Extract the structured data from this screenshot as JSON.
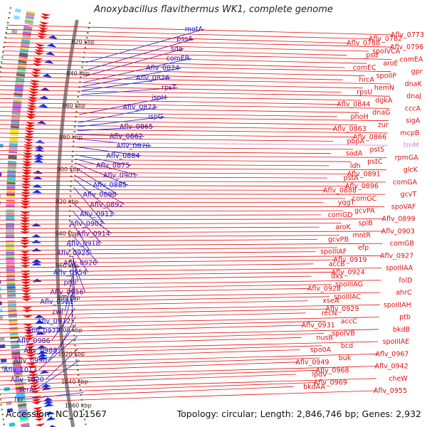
{
  "title": "Anoxybacillus flavithermus WK1, complete genome",
  "footer": {
    "accession": "Accession: NC_011567",
    "summary": "Topology: circular; Length: 2,846,746 bp; Genes: 2,932"
  },
  "colors": {
    "left_labels": "#1010d0",
    "right_labels": "#e01010",
    "trna_label": "#d080d0",
    "backbone": "#888888",
    "tick_dots": "#2a7a2a",
    "forward_arrows": "#e81010",
    "reverse_arrows": "#1030e0"
  },
  "ticks": [
    {
      "label": "820 kbp",
      "t": 0.05
    },
    {
      "label": "840 kbp",
      "t": 0.13
    },
    {
      "label": "860 kbp",
      "t": 0.21
    },
    {
      "label": "880 kbp",
      "t": 0.29
    },
    {
      "label": "900 kbp",
      "t": 0.37
    },
    {
      "label": "920 kbp",
      "t": 0.45
    },
    {
      "label": "940 kbp",
      "t": 0.53
    },
    {
      "label": "960 kbp",
      "t": 0.61
    },
    {
      "label": "980 kbp",
      "t": 0.69
    },
    {
      "label": "1000 kbp",
      "t": 0.77
    },
    {
      "label": "1020 kbp",
      "t": 0.83
    },
    {
      "label": "1040 kbp",
      "t": 0.9
    },
    {
      "label": "1060 kbp",
      "t": 0.96
    }
  ],
  "left_genes": [
    {
      "name": "motA",
      "t": 0.1
    },
    {
      "name": "pssA",
      "t": 0.12
    },
    {
      "name": "sda",
      "t": 0.135
    },
    {
      "name": "comER",
      "t": 0.15
    },
    {
      "name": "Aflv_0824",
      "t": 0.16
    },
    {
      "name": "Aflv_0826",
      "t": 0.17
    },
    {
      "name": "rpsT",
      "t": 0.18
    },
    {
      "name": "ispH",
      "t": 0.23
    },
    {
      "name": "Aflv_0873",
      "t": 0.25
    },
    {
      "name": "ispG",
      "t": 0.26
    },
    {
      "name": "Aflv_0865",
      "t": 0.27
    },
    {
      "name": "Aflv_0862",
      "t": 0.28
    },
    {
      "name": "Aflv_0870",
      "t": 0.29
    },
    {
      "name": "Aflv_0884",
      "t": 0.31
    },
    {
      "name": "Aflv_0875",
      "t": 0.33
    },
    {
      "name": "Aflv_0901",
      "t": 0.34
    },
    {
      "name": "Aflv_0885",
      "t": 0.35
    },
    {
      "name": "Aflv_0898",
      "t": 0.36
    },
    {
      "name": "Aflv_0892",
      "t": 0.38
    },
    {
      "name": "Aflv_0913",
      "t": 0.39
    },
    {
      "name": "Aflv_0902",
      "t": 0.41
    },
    {
      "name": "Aflv_0914",
      "t": 0.45
    },
    {
      "name": "Aflv_0918",
      "t": 0.47
    },
    {
      "name": "Aflv_0925",
      "t": 0.5
    },
    {
      "name": "Aflv_0926",
      "t": 0.53
    },
    {
      "name": "Aflv_0954",
      "t": 0.56
    },
    {
      "name": "prol",
      "t": 0.58
    },
    {
      "name": "Aflv_0956",
      "t": 0.59
    },
    {
      "name": "Aflv_0981",
      "t": 0.6
    },
    {
      "name": "zwf",
      "t": 0.62
    },
    {
      "name": "Aflv_0972",
      "t": 0.63
    },
    {
      "name": "Aflv_0977",
      "t": 0.66
    },
    {
      "name": "Aflv_0986",
      "t": 0.71
    },
    {
      "name": "Aflv_0988",
      "t": 0.73
    },
    {
      "name": "Aflv_0990",
      "t": 0.75
    },
    {
      "name": "Aflv_1013",
      "t": 0.78
    },
    {
      "name": "Aflv_1020",
      "t": 0.81
    },
    {
      "name": "serA",
      "t": 0.84
    },
    {
      "name": "fer",
      "t": 0.92
    }
  ],
  "right_genes": [
    {
      "name": "Aflv_0773",
      "color": "red"
    },
    {
      "name": "Aflv_0782",
      "color": "red"
    },
    {
      "name": "Aflv_0788",
      "color": "red"
    },
    {
      "name": "Aflv_0796",
      "color": "red"
    },
    {
      "name": "spoIVCA",
      "color": "red"
    },
    {
      "name": "psd",
      "color": "red"
    },
    {
      "name": "comEA",
      "color": "red"
    },
    {
      "name": "aroE",
      "color": "red"
    },
    {
      "name": "comEC",
      "color": "red"
    },
    {
      "name": "gpr",
      "color": "red"
    },
    {
      "name": "spoIIP",
      "color": "red"
    },
    {
      "name": "hrcA",
      "color": "red"
    },
    {
      "name": "dnaK",
      "color": "red"
    },
    {
      "name": "hemN",
      "color": "red"
    },
    {
      "name": "rpsU",
      "color": "red"
    },
    {
      "name": "dnaJ",
      "color": "red"
    },
    {
      "name": "dgkA",
      "color": "red"
    },
    {
      "name": "Aflv_0844",
      "color": "red"
    },
    {
      "name": "cccA",
      "color": "red"
    },
    {
      "name": "dnaG",
      "color": "red"
    },
    {
      "name": "phoH",
      "color": "red"
    },
    {
      "name": "sigA",
      "color": "red"
    },
    {
      "name": "zur",
      "color": "red"
    },
    {
      "name": "Aflv_0863",
      "color": "red"
    },
    {
      "name": "mcpB",
      "color": "red"
    },
    {
      "name": "Aflv_0866",
      "color": "red"
    },
    {
      "name": "pbpA",
      "color": "red"
    },
    {
      "name": "trnM",
      "color": "pink"
    },
    {
      "name": "pstS",
      "color": "red"
    },
    {
      "name": "sodA",
      "color": "red"
    },
    {
      "name": "rpmGA",
      "color": "red"
    },
    {
      "name": "pstC",
      "color": "red"
    },
    {
      "name": "ldh",
      "color": "red"
    },
    {
      "name": "glcK",
      "color": "red"
    },
    {
      "name": "Aflv_0891",
      "color": "red"
    },
    {
      "name": "pstA",
      "color": "red"
    },
    {
      "name": "comGA",
      "color": "red"
    },
    {
      "name": "Aflv_0896",
      "color": "red"
    },
    {
      "name": "Aflv_0888",
      "color": "red"
    },
    {
      "name": "gcvT",
      "color": "red"
    },
    {
      "name": "comGC",
      "color": "red"
    },
    {
      "name": "yqgT",
      "color": "red"
    },
    {
      "name": "spoVAF",
      "color": "red"
    },
    {
      "name": "gcvPA",
      "color": "red"
    },
    {
      "name": "comGD",
      "color": "red"
    },
    {
      "name": "Aflv_0899",
      "color": "red"
    },
    {
      "name": "splB",
      "color": "red"
    },
    {
      "name": "aroK",
      "color": "red"
    },
    {
      "name": "Aflv_0903",
      "color": "red"
    },
    {
      "name": "mntR",
      "color": "red"
    },
    {
      "name": "gcvPB",
      "color": "red"
    },
    {
      "name": "comGB",
      "color": "red"
    },
    {
      "name": "efp",
      "color": "red"
    },
    {
      "name": "spoIIIAF",
      "color": "red"
    },
    {
      "name": "Aflv_0927",
      "color": "red"
    },
    {
      "name": "Aflv_0919",
      "color": "red"
    },
    {
      "name": "accB",
      "color": "red"
    },
    {
      "name": "spoIIIAA",
      "color": "red"
    },
    {
      "name": "Aflv_0924",
      "color": "red"
    },
    {
      "name": "dxs",
      "color": "red"
    },
    {
      "name": "folD",
      "color": "red"
    },
    {
      "name": "spoIIIAG",
      "color": "red"
    },
    {
      "name": "Aflv_0928",
      "color": "red"
    },
    {
      "name": "ahrC",
      "color": "red"
    },
    {
      "name": "spoIIIAC",
      "color": "red"
    },
    {
      "name": "xseA",
      "color": "red"
    },
    {
      "name": "spoIIIAH",
      "color": "red"
    },
    {
      "name": "Aflv_0929",
      "color": "red"
    },
    {
      "name": "recN",
      "color": "red"
    },
    {
      "name": "ptb",
      "color": "red"
    },
    {
      "name": "accC",
      "color": "red"
    },
    {
      "name": "Aflv_0931",
      "color": "red"
    },
    {
      "name": "bkdB",
      "color": "red"
    },
    {
      "name": "spoIVB",
      "color": "red"
    },
    {
      "name": "nusB",
      "color": "red"
    },
    {
      "name": "spoIIIAE",
      "color": "red"
    },
    {
      "name": "bcd",
      "color": "red"
    },
    {
      "name": "spo0A",
      "color": "red"
    },
    {
      "name": "Aflv_0967",
      "color": "red"
    },
    {
      "name": "buk",
      "color": "red"
    },
    {
      "name": "Aflv_0949",
      "color": "red"
    },
    {
      "name": "Aflv_0942",
      "color": "red"
    },
    {
      "name": "Aflv_0968",
      "color": "red"
    },
    {
      "name": "lpdV",
      "color": "red"
    },
    {
      "name": "cheW",
      "color": "red"
    },
    {
      "name": "Aflv_0969",
      "color": "red"
    },
    {
      "name": "bkdAA",
      "color": "red"
    },
    {
      "name": "Aflv_0955",
      "color": "red"
    }
  ]
}
